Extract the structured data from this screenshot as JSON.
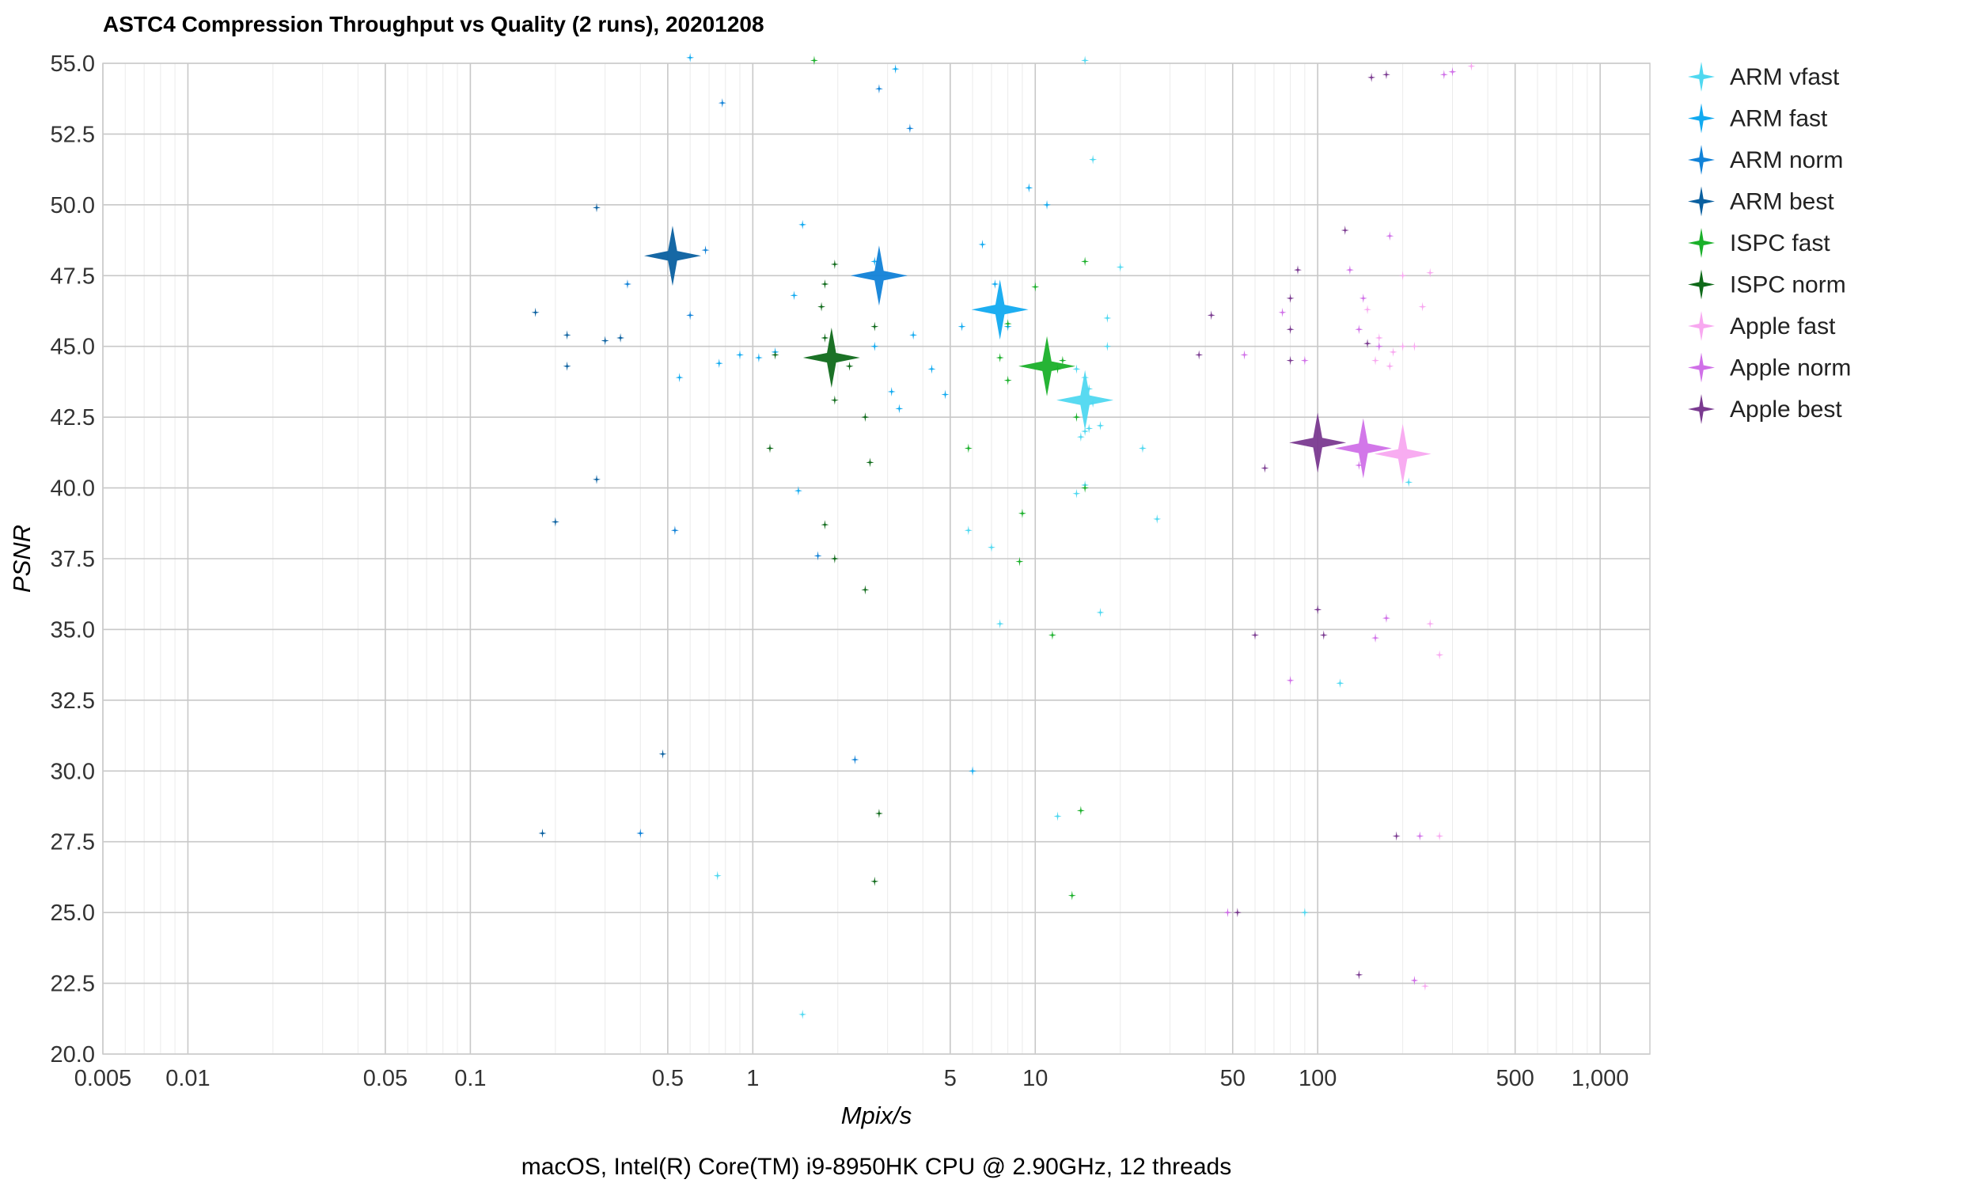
{
  "chart_data": {
    "type": "scatter",
    "title": "ASTC4 Compression Throughput vs Quality (2 runs), 20201208",
    "subtitle": "macOS, Intel(R) Core(TM) i9-8950HK CPU @ 2.90GHz, 12 threads",
    "xlabel": "Mpix/s",
    "ylabel": "PSNR",
    "xscale": "log",
    "xlim": [
      0.005,
      1500
    ],
    "ylim": [
      20,
      55
    ],
    "x_ticks": [
      0.005,
      0.01,
      0.05,
      0.1,
      0.5,
      1,
      5,
      10,
      50,
      100,
      500,
      1000
    ],
    "x_tick_labels": [
      "0.005",
      "0.01",
      "0.05",
      "0.1",
      "0.5",
      "1",
      "5",
      "10",
      "50",
      "100",
      "500",
      "1,000"
    ],
    "y_ticks": [
      20,
      22.5,
      25,
      27.5,
      30,
      32.5,
      35,
      37.5,
      40,
      42.5,
      45,
      47.5,
      50,
      52.5,
      55
    ],
    "y_tick_labels": [
      "20.0",
      "22.5",
      "25.0",
      "27.5",
      "30.0",
      "32.5",
      "35.0",
      "37.5",
      "40.0",
      "42.5",
      "45.0",
      "47.5",
      "50.0",
      "52.5",
      "55.0"
    ],
    "grid": true,
    "legend_position": "right",
    "series": [
      {
        "name": "ARM vfast",
        "color": "#4fd8f0",
        "mean": [
          15.0,
          43.1
        ],
        "points": [
          [
            15,
            55.1
          ],
          [
            16,
            51.6
          ],
          [
            14,
            44.2
          ],
          [
            15,
            43.9
          ],
          [
            15.5,
            43.5
          ],
          [
            16,
            43.0
          ],
          [
            15,
            42.0
          ],
          [
            14.5,
            41.8
          ],
          [
            15.5,
            42.1
          ],
          [
            17,
            42.2
          ],
          [
            20,
            47.8
          ],
          [
            18,
            46.0
          ],
          [
            18,
            45.0
          ],
          [
            15,
            40.1
          ],
          [
            14,
            39.8
          ],
          [
            24,
            41.4
          ],
          [
            27,
            38.9
          ],
          [
            7,
            37.9
          ],
          [
            5.8,
            38.5
          ],
          [
            7.5,
            35.2
          ],
          [
            17,
            35.6
          ],
          [
            12,
            28.4
          ],
          [
            0.75,
            26.3
          ],
          [
            1.5,
            21.4
          ],
          [
            90,
            25.0
          ],
          [
            120,
            33.1
          ],
          [
            210,
            40.2
          ]
        ]
      },
      {
        "name": "ARM fast",
        "color": "#11aaf0",
        "mean": [
          7.5,
          46.3
        ],
        "points": [
          [
            6.5,
            48.6
          ],
          [
            7.2,
            47.2
          ],
          [
            9.5,
            50.6
          ],
          [
            11,
            50.0
          ],
          [
            5.5,
            45.7
          ],
          [
            4.8,
            43.3
          ],
          [
            4.3,
            44.2
          ],
          [
            3.7,
            45.4
          ],
          [
            3.1,
            43.4
          ],
          [
            3.3,
            42.8
          ],
          [
            2.7,
            45.0
          ],
          [
            0.6,
            55.2
          ],
          [
            3.2,
            54.8
          ],
          [
            1.5,
            49.3
          ],
          [
            2.7,
            48.0
          ],
          [
            1.4,
            46.8
          ],
          [
            1.2,
            44.8
          ],
          [
            1.05,
            44.6
          ],
          [
            0.9,
            44.7
          ],
          [
            0.76,
            44.4
          ],
          [
            0.55,
            43.9
          ],
          [
            1.45,
            39.9
          ],
          [
            6,
            30.0
          ],
          [
            8,
            45.7
          ]
        ]
      },
      {
        "name": "ARM norm",
        "color": "#1182d8",
        "mean": [
          2.8,
          47.5
        ],
        "points": [
          [
            0.78,
            53.6
          ],
          [
            2.8,
            54.1
          ],
          [
            3.6,
            52.7
          ],
          [
            0.68,
            48.4
          ],
          [
            0.6,
            46.1
          ],
          [
            0.36,
            47.2
          ],
          [
            0.53,
            38.5
          ],
          [
            1.7,
            37.6
          ],
          [
            2.3,
            30.4
          ],
          [
            0.4,
            27.8
          ]
        ]
      },
      {
        "name": "ARM best",
        "color": "#0a60a0",
        "mean": [
          0.52,
          48.2
        ],
        "points": [
          [
            0.28,
            49.9
          ],
          [
            0.17,
            46.2
          ],
          [
            0.22,
            45.4
          ],
          [
            0.3,
            45.2
          ],
          [
            0.34,
            45.3
          ],
          [
            0.22,
            44.3
          ],
          [
            0.28,
            40.3
          ],
          [
            0.2,
            38.8
          ],
          [
            0.48,
            30.6
          ],
          [
            0.18,
            27.8
          ]
        ]
      },
      {
        "name": "ISPC fast",
        "color": "#1ab02a",
        "mean": [
          11.0,
          44.3
        ],
        "points": [
          [
            15,
            48.0
          ],
          [
            10,
            47.1
          ],
          [
            7.5,
            44.6
          ],
          [
            8,
            45.8
          ],
          [
            8,
            43.8
          ],
          [
            12,
            44.2
          ],
          [
            14,
            42.5
          ],
          [
            5.8,
            41.4
          ],
          [
            15,
            40.0
          ],
          [
            9,
            39.1
          ],
          [
            8.8,
            37.4
          ],
          [
            11.5,
            34.8
          ],
          [
            14.5,
            28.6
          ],
          [
            13.5,
            25.6
          ],
          [
            1.65,
            55.1
          ],
          [
            12.5,
            44.5
          ]
        ]
      },
      {
        "name": "ISPC norm",
        "color": "#0f6a1a",
        "mean": [
          1.9,
          44.6
        ],
        "points": [
          [
            1.95,
            47.9
          ],
          [
            1.8,
            47.2
          ],
          [
            1.75,
            46.4
          ],
          [
            2.7,
            45.7
          ],
          [
            1.8,
            45.3
          ],
          [
            1.2,
            44.7
          ],
          [
            1.95,
            43.1
          ],
          [
            2.5,
            42.5
          ],
          [
            1.15,
            41.4
          ],
          [
            2.6,
            40.9
          ],
          [
            1.8,
            38.7
          ],
          [
            1.95,
            37.5
          ],
          [
            2.5,
            36.4
          ],
          [
            2.8,
            28.5
          ],
          [
            2.7,
            26.1
          ],
          [
            2.2,
            44.3
          ]
        ]
      },
      {
        "name": "Apple fast",
        "color": "#f8a8f0",
        "mean": [
          200,
          41.2
        ],
        "points": [
          [
            350,
            54.9
          ],
          [
            200,
            47.5
          ],
          [
            250,
            47.6
          ],
          [
            235,
            46.4
          ],
          [
            150,
            46.3
          ],
          [
            165,
            45.3
          ],
          [
            200,
            45.0
          ],
          [
            220,
            45.0
          ],
          [
            180,
            44.3
          ],
          [
            250,
            35.2
          ],
          [
            270,
            34.1
          ],
          [
            270,
            27.7
          ],
          [
            240,
            22.4
          ],
          [
            185,
            44.8
          ],
          [
            160,
            44.5
          ]
        ]
      },
      {
        "name": "Apple norm",
        "color": "#d070e8",
        "mean": [
          145,
          41.4
        ],
        "points": [
          [
            300,
            54.7
          ],
          [
            280,
            54.6
          ],
          [
            180,
            48.9
          ],
          [
            130,
            47.7
          ],
          [
            145,
            46.7
          ],
          [
            75,
            46.2
          ],
          [
            140,
            45.6
          ],
          [
            165,
            45.0
          ],
          [
            55,
            44.7
          ],
          [
            90,
            44.5
          ],
          [
            140,
            40.8
          ],
          [
            175,
            35.4
          ],
          [
            160,
            34.7
          ],
          [
            80,
            33.2
          ],
          [
            230,
            27.7
          ],
          [
            48,
            25.0
          ],
          [
            220,
            22.6
          ]
        ]
      },
      {
        "name": "Apple best",
        "color": "#7a3a90",
        "mean": [
          100,
          41.6
        ],
        "points": [
          [
            175,
            54.6
          ],
          [
            155,
            54.5
          ],
          [
            125,
            49.1
          ],
          [
            85,
            47.7
          ],
          [
            80,
            46.7
          ],
          [
            42,
            46.1
          ],
          [
            80,
            45.6
          ],
          [
            150,
            45.1
          ],
          [
            38,
            44.7
          ],
          [
            80,
            44.5
          ],
          [
            65,
            40.7
          ],
          [
            100,
            35.7
          ],
          [
            105,
            34.8
          ],
          [
            60,
            34.8
          ],
          [
            190,
            27.7
          ],
          [
            52,
            25.0
          ],
          [
            140,
            22.8
          ]
        ]
      }
    ]
  }
}
